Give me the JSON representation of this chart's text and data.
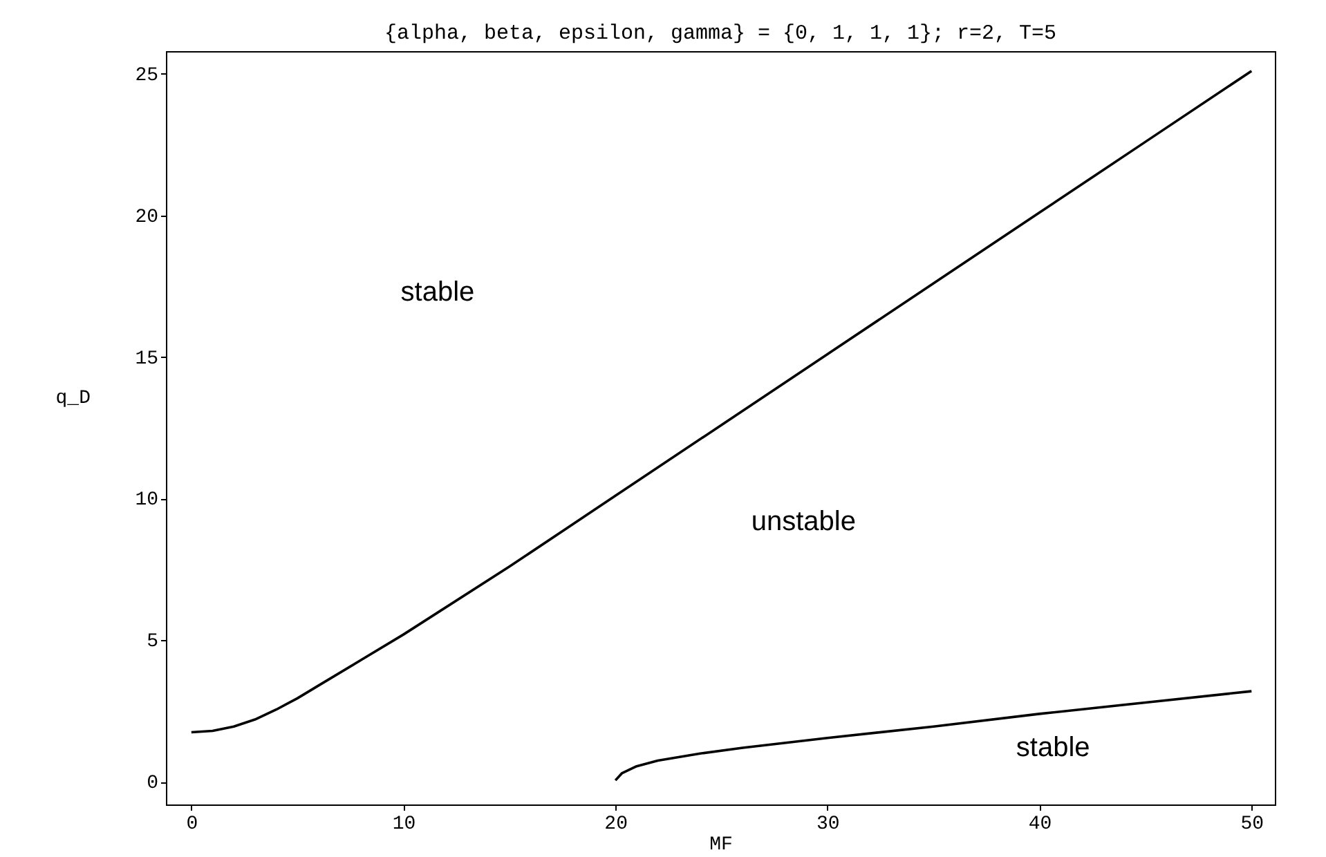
{
  "chart_data": {
    "type": "line",
    "title": "{alpha, beta, epsilon, gamma} = {0, 1, 1, 1}; r=2, T=5",
    "xlabel": "MF",
    "ylabel": "q_D",
    "xlim": [
      -1.2,
      51.1
    ],
    "ylim": [
      -0.8,
      25.8
    ],
    "xticks": [
      0,
      10,
      20,
      30,
      40,
      50
    ],
    "yticks": [
      0,
      5,
      10,
      15,
      20,
      25
    ],
    "marker": "none",
    "line_style": "solid",
    "series": [
      {
        "color": "#000000",
        "x": [
          0,
          1,
          2,
          3,
          4,
          5,
          6,
          8,
          10,
          15,
          20,
          25,
          30,
          35,
          40,
          45,
          50
        ],
        "values": [
          1.75,
          1.8,
          1.95,
          2.2,
          2.55,
          2.95,
          3.4,
          4.3,
          5.2,
          7.6,
          10.1,
          12.6,
          15.1,
          17.6,
          20.1,
          22.6,
          25.1
        ]
      },
      {
        "color": "#000000",
        "x": [
          20,
          20.3,
          21,
          22,
          24,
          26,
          30,
          35,
          40,
          45,
          50
        ],
        "values": [
          0.05,
          0.3,
          0.55,
          0.75,
          1.0,
          1.2,
          1.55,
          1.95,
          2.4,
          2.8,
          3.2
        ]
      }
    ],
    "annotations": [
      "stable",
      "unstable",
      "stable"
    ]
  }
}
